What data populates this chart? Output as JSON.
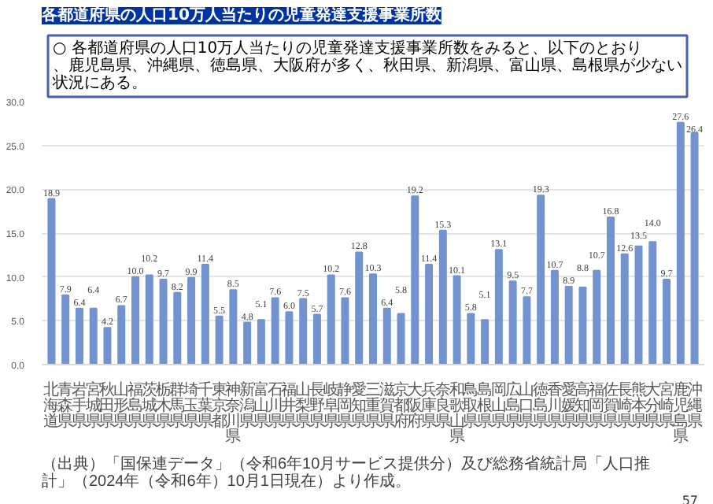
{
  "chart_data": {
    "type": "bar",
    "title": "各都道府県の人口10万人当たりの児童発達支援事業所数",
    "subtitle": "○  各都道府県の人口10万人当たりの児童発達支援事業所数をみると、以下のとおり、鹿児島県、沖縄県、徳島県、大阪府が多く、秋田県、新潟県、富山県、島根県が少ない状況にある。",
    "categories": [
      "北海道",
      "青森県",
      "岩手県",
      "宮城県",
      "秋田県",
      "山形県",
      "福島県",
      "茨城県",
      "栃木県",
      "群馬県",
      "埼玉県",
      "千葉県",
      "東京都",
      "神奈川県",
      "新潟県",
      "富山県",
      "石川県",
      "福井県",
      "山梨県",
      "長野県",
      "岐阜県",
      "静岡県",
      "愛知県",
      "三重県",
      "滋賀県",
      "京都府",
      "大阪府",
      "兵庫県",
      "奈良県",
      "和歌山県",
      "鳥取県",
      "島根県",
      "岡山県",
      "広島県",
      "山口県",
      "徳島県",
      "香川県",
      "愛媛県",
      "高知県",
      "福岡県",
      "佐賀県",
      "長崎県",
      "熊本県",
      "大分県",
      "宮崎県",
      "鹿児島県",
      "沖縄県"
    ],
    "values": [
      18.9,
      7.9,
      6.4,
      6.4,
      4.2,
      6.7,
      10.0,
      10.2,
      9.7,
      8.2,
      9.9,
      11.4,
      5.5,
      8.5,
      4.8,
      5.1,
      7.6,
      6.0,
      7.5,
      5.7,
      10.2,
      7.6,
      12.8,
      10.3,
      6.4,
      5.8,
      19.2,
      11.4,
      15.3,
      10.1,
      5.8,
      5.1,
      13.1,
      9.5,
      7.7,
      19.3,
      10.7,
      8.9,
      8.8,
      10.7,
      16.8,
      12.6,
      13.5,
      14.0,
      9.7,
      27.6,
      26.4
    ],
    "color": "#7393d0",
    "value_labels": [
      "18.9",
      "7.9",
      "6.4",
      "6.4",
      "4.2",
      "6.7",
      "10.0",
      "10.2",
      "9.7",
      "8.2",
      "9.9",
      "11.4",
      "5.5",
      "8.5",
      "4.8",
      "5.1",
      "7.6",
      "6.0",
      "7.5",
      "5.7",
      "10.2",
      "7.6",
      "12.8",
      "10.3",
      "6.4",
      "5.8",
      "19.2",
      "11.4",
      "15.3",
      "10.1",
      "5.8",
      "5.1",
      "13.1",
      "9.5",
      "7.7",
      "19.3",
      "10.7",
      "8.9",
      "8.8",
      "10.7",
      "16.8",
      "12.6",
      "13.5",
      "14.0",
      "9.7",
      "27.6",
      "26.4"
    ],
    "ylim": [
      0,
      30
    ],
    "yticks": [
      {
        "value": 0,
        "label": "0.0"
      },
      {
        "value": 5,
        "label": "5.0"
      },
      {
        "value": 10,
        "label": "10.0"
      },
      {
        "value": 15,
        "label": "15.0"
      },
      {
        "value": 20,
        "label": "20.0"
      },
      {
        "value": 25,
        "label": "25.0"
      },
      {
        "value": 30,
        "label": "30.0"
      }
    ],
    "grid": "y",
    "annotations": [
      "（出典）「国保連データ」（令和6年10月サービス提供分）及び総務省統計局「人口推計」（2024年（令和6年）10月1日現在）より作成。",
      "57"
    ]
  }
}
